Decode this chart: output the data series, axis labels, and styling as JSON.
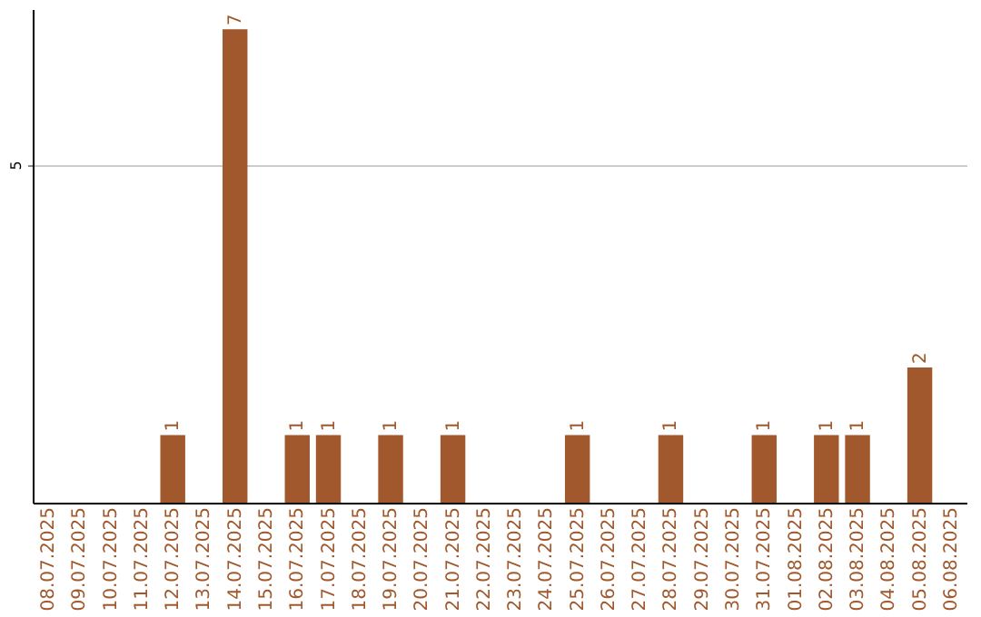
{
  "chart_data": {
    "type": "bar",
    "categories": [
      "08.07.2025",
      "09.07.2025",
      "10.07.2025",
      "11.07.2025",
      "12.07.2025",
      "13.07.2025",
      "14.07.2025",
      "15.07.2025",
      "16.07.2025",
      "17.07.2025",
      "18.07.2025",
      "19.07.2025",
      "20.07.2025",
      "21.07.2025",
      "22.07.2025",
      "23.07.2025",
      "24.07.2025",
      "25.07.2025",
      "26.07.2025",
      "27.07.2025",
      "28.07.2025",
      "29.07.2025",
      "30.07.2025",
      "31.07.2025",
      "01.08.2025",
      "02.08.2025",
      "03.08.2025",
      "04.08.2025",
      "05.08.2025",
      "06.08.2025"
    ],
    "values": [
      null,
      null,
      null,
      null,
      1,
      null,
      7,
      null,
      1,
      1,
      null,
      1,
      null,
      1,
      null,
      null,
      null,
      1,
      null,
      null,
      1,
      null,
      null,
      1,
      null,
      1,
      1,
      null,
      2,
      null
    ],
    "color": "#a0582c",
    "ylim": [
      0,
      7.3
    ],
    "yticks": [
      5
    ],
    "grid": "y",
    "data_labels": true
  }
}
